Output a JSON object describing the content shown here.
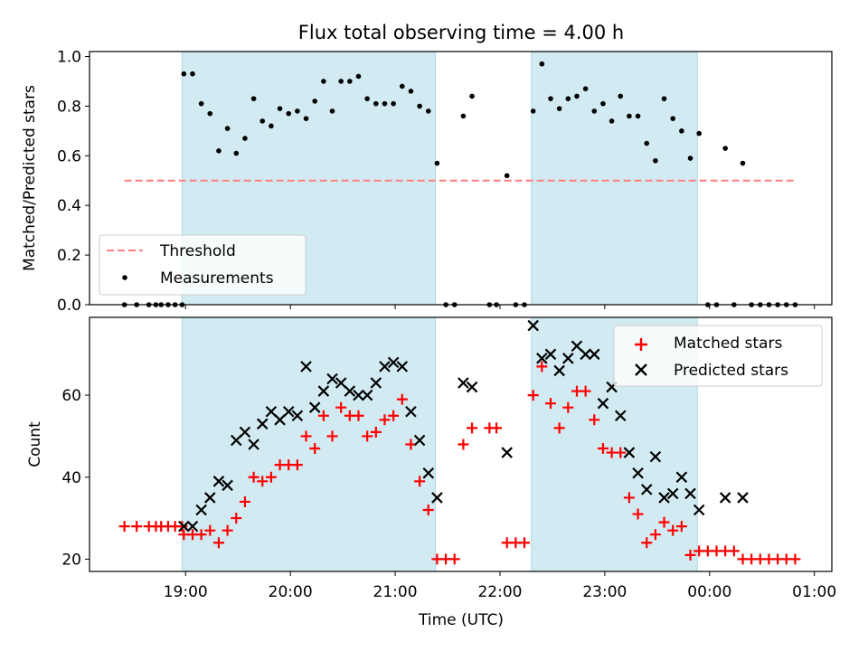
{
  "figure": {
    "title": "Flux total observing time = 4.00 h",
    "xlabel": "Time (UTC)"
  },
  "colors": {
    "shade": "#add8e6",
    "threshold": "#ff7f7f",
    "matched": "#ff0000",
    "predicted": "#000000",
    "measurement": "#000000"
  },
  "chart_data": [
    {
      "type": "scatter",
      "panel": "top",
      "ylabel": "Matched/Predicted stars",
      "ylim": [
        0,
        1.02
      ],
      "yticks": [
        0.0,
        0.2,
        0.4,
        0.6,
        0.8,
        1.0
      ],
      "yticklabels": [
        "0.0",
        "0.2",
        "0.4",
        "0.6",
        "0.8",
        "1.0"
      ],
      "xlim": [
        "18:05",
        "01:10"
      ],
      "xticks": [
        "19:00",
        "20:00",
        "21:00",
        "22:00",
        "23:00",
        "00:00",
        "01:00"
      ],
      "xticklabels_shown": false,
      "shaded_regions": [
        [
          "18:58",
          "21:23"
        ],
        [
          "22:18",
          "23:53"
        ]
      ],
      "threshold": {
        "value": 0.5,
        "x_range": [
          "18:25",
          "00:50"
        ]
      },
      "legend": {
        "position": "lower-left",
        "entries": [
          "Threshold",
          "Measurements"
        ]
      },
      "series": [
        {
          "name": "Measurements",
          "points": [
            [
              "18:25",
              0
            ],
            [
              "18:32",
              0
            ],
            [
              "18:39",
              0
            ],
            [
              "18:43",
              0
            ],
            [
              "18:46",
              0
            ],
            [
              "18:50",
              0
            ],
            [
              "18:54",
              0
            ],
            [
              "18:58",
              0
            ],
            [
              "18:59",
              0.93
            ],
            [
              "19:04",
              0.93
            ],
            [
              "19:09",
              0.81
            ],
            [
              "19:14",
              0.77
            ],
            [
              "19:19",
              0.62
            ],
            [
              "19:24",
              0.71
            ],
            [
              "19:29",
              0.61
            ],
            [
              "19:34",
              0.67
            ],
            [
              "19:39",
              0.83
            ],
            [
              "19:44",
              0.74
            ],
            [
              "19:49",
              0.72
            ],
            [
              "19:54",
              0.79
            ],
            [
              "19:59",
              0.77
            ],
            [
              "20:04",
              0.78
            ],
            [
              "20:09",
              0.75
            ],
            [
              "20:14",
              0.82
            ],
            [
              "20:19",
              0.9
            ],
            [
              "20:24",
              0.78
            ],
            [
              "20:29",
              0.9
            ],
            [
              "20:34",
              0.9
            ],
            [
              "20:39",
              0.92
            ],
            [
              "20:44",
              0.83
            ],
            [
              "20:49",
              0.81
            ],
            [
              "20:54",
              0.81
            ],
            [
              "20:59",
              0.81
            ],
            [
              "21:04",
              0.88
            ],
            [
              "21:09",
              0.86
            ],
            [
              "21:14",
              0.8
            ],
            [
              "21:19",
              0.78
            ],
            [
              "21:24",
              0.57
            ],
            [
              "21:29",
              0
            ],
            [
              "21:34",
              0
            ],
            [
              "21:39",
              0.76
            ],
            [
              "21:44",
              0.84
            ],
            [
              "21:54",
              0
            ],
            [
              "21:58",
              0
            ],
            [
              "22:04",
              0.52
            ],
            [
              "22:09",
              0
            ],
            [
              "22:14",
              0
            ],
            [
              "22:19",
              0.78
            ],
            [
              "22:24",
              0.97
            ],
            [
              "22:29",
              0.83
            ],
            [
              "22:34",
              0.79
            ],
            [
              "22:39",
              0.83
            ],
            [
              "22:44",
              0.84
            ],
            [
              "22:49",
              0.87
            ],
            [
              "22:54",
              0.78
            ],
            [
              "22:59",
              0.81
            ],
            [
              "23:04",
              0.74
            ],
            [
              "23:09",
              0.84
            ],
            [
              "23:14",
              0.76
            ],
            [
              "23:19",
              0.76
            ],
            [
              "23:24",
              0.65
            ],
            [
              "23:29",
              0.58
            ],
            [
              "23:34",
              0.83
            ],
            [
              "23:39",
              0.75
            ],
            [
              "23:44",
              0.7
            ],
            [
              "23:49",
              0.59
            ],
            [
              "23:54",
              0.69
            ],
            [
              "23:59",
              0
            ],
            [
              "00:04",
              0
            ],
            [
              "00:09",
              0.63
            ],
            [
              "00:14",
              0
            ],
            [
              "00:19",
              0.57
            ],
            [
              "00:24",
              0
            ],
            [
              "00:29",
              0
            ],
            [
              "00:34",
              0
            ],
            [
              "00:39",
              0
            ],
            [
              "00:44",
              0
            ],
            [
              "00:49",
              0
            ]
          ]
        }
      ]
    },
    {
      "type": "scatter",
      "panel": "bottom",
      "ylabel": "Count",
      "ylim": [
        17,
        79
      ],
      "yticks": [
        20,
        40,
        60
      ],
      "yticklabels": [
        "20",
        "40",
        "60"
      ],
      "xlim": [
        "18:05",
        "01:10"
      ],
      "xticks": [
        "19:00",
        "20:00",
        "21:00",
        "22:00",
        "23:00",
        "00:00",
        "01:00"
      ],
      "xticklabels": [
        "19:00",
        "20:00",
        "21:00",
        "22:00",
        "23:00",
        "00:00",
        "01:00"
      ],
      "xticklabels_shown": true,
      "shaded_regions": [
        [
          "18:58",
          "21:23"
        ],
        [
          "22:18",
          "23:53"
        ]
      ],
      "legend": {
        "position": "top-right",
        "entries": [
          "Matched stars",
          "Predicted stars"
        ]
      },
      "series": [
        {
          "name": "Matched stars",
          "marker": "plus",
          "points": [
            [
              "18:25",
              28
            ],
            [
              "18:32",
              28
            ],
            [
              "18:39",
              28
            ],
            [
              "18:43",
              28
            ],
            [
              "18:46",
              28
            ],
            [
              "18:50",
              28
            ],
            [
              "18:54",
              28
            ],
            [
              "18:58",
              28
            ],
            [
              "18:59",
              26
            ],
            [
              "19:04",
              26
            ],
            [
              "19:09",
              26
            ],
            [
              "19:14",
              27
            ],
            [
              "19:19",
              24
            ],
            [
              "19:24",
              27
            ],
            [
              "19:29",
              30
            ],
            [
              "19:34",
              34
            ],
            [
              "19:39",
              40
            ],
            [
              "19:44",
              39
            ],
            [
              "19:49",
              40
            ],
            [
              "19:54",
              43
            ],
            [
              "19:59",
              43
            ],
            [
              "20:04",
              43
            ],
            [
              "20:09",
              50
            ],
            [
              "20:14",
              47
            ],
            [
              "20:19",
              55
            ],
            [
              "20:24",
              50
            ],
            [
              "20:29",
              57
            ],
            [
              "20:34",
              55
            ],
            [
              "20:39",
              55
            ],
            [
              "20:44",
              50
            ],
            [
              "20:49",
              51
            ],
            [
              "20:54",
              54
            ],
            [
              "20:59",
              55
            ],
            [
              "21:04",
              59
            ],
            [
              "21:09",
              48
            ],
            [
              "21:14",
              39
            ],
            [
              "21:19",
              32
            ],
            [
              "21:24",
              20
            ],
            [
              "21:29",
              20
            ],
            [
              "21:34",
              20
            ],
            [
              "21:39",
              48
            ],
            [
              "21:44",
              52
            ],
            [
              "21:54",
              52
            ],
            [
              "21:58",
              52
            ],
            [
              "22:04",
              24
            ],
            [
              "22:09",
              24
            ],
            [
              "22:14",
              24
            ],
            [
              "22:19",
              60
            ],
            [
              "22:24",
              67
            ],
            [
              "22:29",
              58
            ],
            [
              "22:34",
              52
            ],
            [
              "22:39",
              57
            ],
            [
              "22:44",
              61
            ],
            [
              "22:49",
              61
            ],
            [
              "22:54",
              54
            ],
            [
              "22:59",
              47
            ],
            [
              "23:04",
              46
            ],
            [
              "23:09",
              46
            ],
            [
              "23:14",
              35
            ],
            [
              "23:19",
              31
            ],
            [
              "23:24",
              24
            ],
            [
              "23:29",
              26
            ],
            [
              "23:34",
              29
            ],
            [
              "23:39",
              27
            ],
            [
              "23:44",
              28
            ],
            [
              "23:49",
              21
            ],
            [
              "23:54",
              22
            ],
            [
              "23:59",
              22
            ],
            [
              "00:04",
              22
            ],
            [
              "00:09",
              22
            ],
            [
              "00:14",
              22
            ],
            [
              "00:19",
              20
            ],
            [
              "00:24",
              20
            ],
            [
              "00:29",
              20
            ],
            [
              "00:34",
              20
            ],
            [
              "00:39",
              20
            ],
            [
              "00:44",
              20
            ],
            [
              "00:49",
              20
            ]
          ]
        },
        {
          "name": "Predicted stars",
          "marker": "x",
          "points": [
            [
              "18:59",
              28
            ],
            [
              "19:04",
              28
            ],
            [
              "19:09",
              32
            ],
            [
              "19:14",
              35
            ],
            [
              "19:19",
              39
            ],
            [
              "19:24",
              38
            ],
            [
              "19:29",
              49
            ],
            [
              "19:34",
              51
            ],
            [
              "19:39",
              48
            ],
            [
              "19:44",
              53
            ],
            [
              "19:49",
              56
            ],
            [
              "19:54",
              54
            ],
            [
              "19:59",
              56
            ],
            [
              "20:04",
              55
            ],
            [
              "20:09",
              67
            ],
            [
              "20:14",
              57
            ],
            [
              "20:19",
              61
            ],
            [
              "20:24",
              64
            ],
            [
              "20:29",
              63
            ],
            [
              "20:34",
              61
            ],
            [
              "20:39",
              60
            ],
            [
              "20:44",
              60
            ],
            [
              "20:49",
              63
            ],
            [
              "20:54",
              67
            ],
            [
              "20:59",
              68
            ],
            [
              "21:04",
              67
            ],
            [
              "21:09",
              56
            ],
            [
              "21:14",
              49
            ],
            [
              "21:19",
              41
            ],
            [
              "21:24",
              35
            ],
            [
              "21:39",
              63
            ],
            [
              "21:44",
              62
            ],
            [
              "22:04",
              46
            ],
            [
              "22:19",
              77
            ],
            [
              "22:24",
              69
            ],
            [
              "22:29",
              70
            ],
            [
              "22:34",
              66
            ],
            [
              "22:39",
              69
            ],
            [
              "22:44",
              72
            ],
            [
              "22:49",
              70
            ],
            [
              "22:54",
              70
            ],
            [
              "22:59",
              58
            ],
            [
              "23:04",
              62
            ],
            [
              "23:09",
              55
            ],
            [
              "23:14",
              46
            ],
            [
              "23:19",
              41
            ],
            [
              "23:24",
              37
            ],
            [
              "23:29",
              45
            ],
            [
              "23:34",
              35
            ],
            [
              "23:39",
              36
            ],
            [
              "23:44",
              40
            ],
            [
              "23:49",
              36
            ],
            [
              "23:54",
              32
            ],
            [
              "00:09",
              35
            ],
            [
              "00:19",
              35
            ]
          ]
        }
      ]
    }
  ]
}
